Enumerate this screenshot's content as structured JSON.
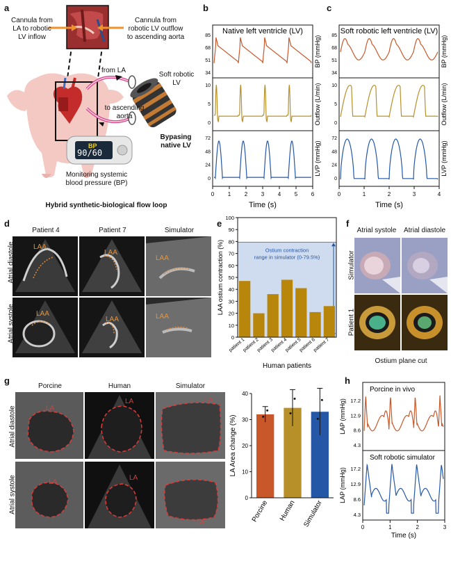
{
  "panel_a": {
    "letter": "a",
    "cannula_in": "Cannula from\nLA to robotic\nLV inflow",
    "cannula_out": "Cannula from\nrobotic LV outflow\nto ascending aorta",
    "from_la": "from LA",
    "soft_robotic_lv": "Soft robotic\nLV",
    "to_aorta": "to ascending\naorta",
    "bp_label": "BP",
    "bp_value": "90/60",
    "bypassing": "Bypasing\nnative LV",
    "monitoring": "Monitoring systemic\nblood pressure (BP)",
    "caption": "Hybrid synthetic-biological flow loop"
  },
  "panel_b": {
    "letter": "b",
    "title": "Native left ventricle (LV)",
    "xlabel": "Time (s)",
    "xticks": [
      "0",
      "1",
      "2",
      "3",
      "4",
      "5",
      "6"
    ],
    "bp_label": "BP (mmHg)",
    "bp_ticks": [
      "85",
      "68",
      "51",
      "34"
    ],
    "flow_label": "Outflow (L/min)",
    "flow_ticks": [
      "10",
      "5",
      "0"
    ],
    "lvp_label": "LVP (mmHg)",
    "lvp_ticks": [
      "72",
      "48",
      "24",
      "0"
    ]
  },
  "panel_c": {
    "letter": "c",
    "title": "Soft robotic left ventricle (LV)",
    "xlabel": "Time (s)",
    "xticks": [
      "0",
      "1",
      "2",
      "3",
      "4"
    ],
    "bp_label": "BP (mmHg)",
    "bp_ticks": [
      "85",
      "68",
      "51",
      "34"
    ],
    "flow_label": "Outflow (L/min)",
    "flow_ticks": [
      "10",
      "5",
      "0"
    ],
    "lvp_label": "LVP (mmHg)",
    "lvp_ticks": [
      "72",
      "48",
      "24",
      "0"
    ]
  },
  "panel_d": {
    "letter": "d",
    "cols": [
      "Patient 4",
      "Patient 7",
      "Simulator"
    ],
    "rows": [
      "Atrial diastole",
      "Atrial systole"
    ],
    "laa": "LAA"
  },
  "panel_e": {
    "letter": "e",
    "ylabel": "LAA ostium contraction (%)",
    "xlabel": "Human patients",
    "range_text": "Ostium contraction\nrange in simulator (0-79.5%)"
  },
  "panel_f": {
    "letter": "f",
    "cols": [
      "Atrial systole",
      "Atrial diastole"
    ],
    "rows": [
      "Simulator",
      "Patient 1"
    ],
    "caption": "Ostium plane cut"
  },
  "panel_g": {
    "letter": "g",
    "cols": [
      "Porcine",
      "Human",
      "Simulator"
    ],
    "rows": [
      "Atrial diastole",
      "Atrial systole"
    ],
    "la": "LA"
  },
  "panel_g_bar": {
    "ylabel": "LA Area change (%)"
  },
  "panel_h": {
    "letter": "h",
    "top_title": "Porcine in vivo",
    "bottom_title": "Soft robotic simulator",
    "ylabel": "LAP (mmHg)",
    "yticks": [
      "17.2",
      "12.9",
      "8.6",
      "4.3"
    ],
    "xlabel": "Time (s)",
    "xticks": [
      "0",
      "1",
      "2",
      "3"
    ]
  },
  "chart_data": [
    {
      "type": "bar",
      "id": "laa-ostium",
      "categories": [
        "patient 1",
        "patient 2",
        "patient 3",
        "patient 4",
        "patient 5",
        "patient 6",
        "patient 7"
      ],
      "values": [
        47,
        20,
        36,
        48,
        41,
        21,
        26
      ],
      "ylabel": "LAA ostium contraction (%)",
      "xlabel": "Human patients",
      "ylim": [
        0,
        100
      ],
      "yticks": [
        0,
        10,
        20,
        30,
        40,
        50,
        60,
        70,
        80,
        90,
        100
      ],
      "shaded_range": [
        0,
        79.5
      ],
      "color": "#b8860b"
    },
    {
      "type": "bar",
      "id": "la-area",
      "categories": [
        "Porcine",
        "Human",
        "Simulator"
      ],
      "values": [
        32,
        34.5,
        33
      ],
      "errors": [
        3,
        7,
        9
      ],
      "colors": [
        "#c8582a",
        "#b8902a",
        "#2457a6"
      ],
      "ylabel": "LA Area change (%)",
      "ylim": [
        0,
        40
      ],
      "yticks": [
        0,
        10,
        20,
        30,
        40
      ]
    }
  ]
}
